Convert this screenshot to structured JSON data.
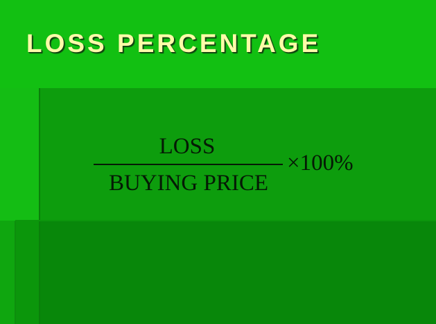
{
  "slide": {
    "title": "LOSS PERCENTAGE",
    "formula": {
      "numerator": "LOSS",
      "denominator": "BUYING PRICE",
      "multiplier": "×100%"
    }
  },
  "colors": {
    "title_text": "#fdfba8",
    "top_band": "#12c012",
    "content_panel": "#0d9d0d",
    "lower_background": "#08870a",
    "formula_text": "#051a05"
  }
}
